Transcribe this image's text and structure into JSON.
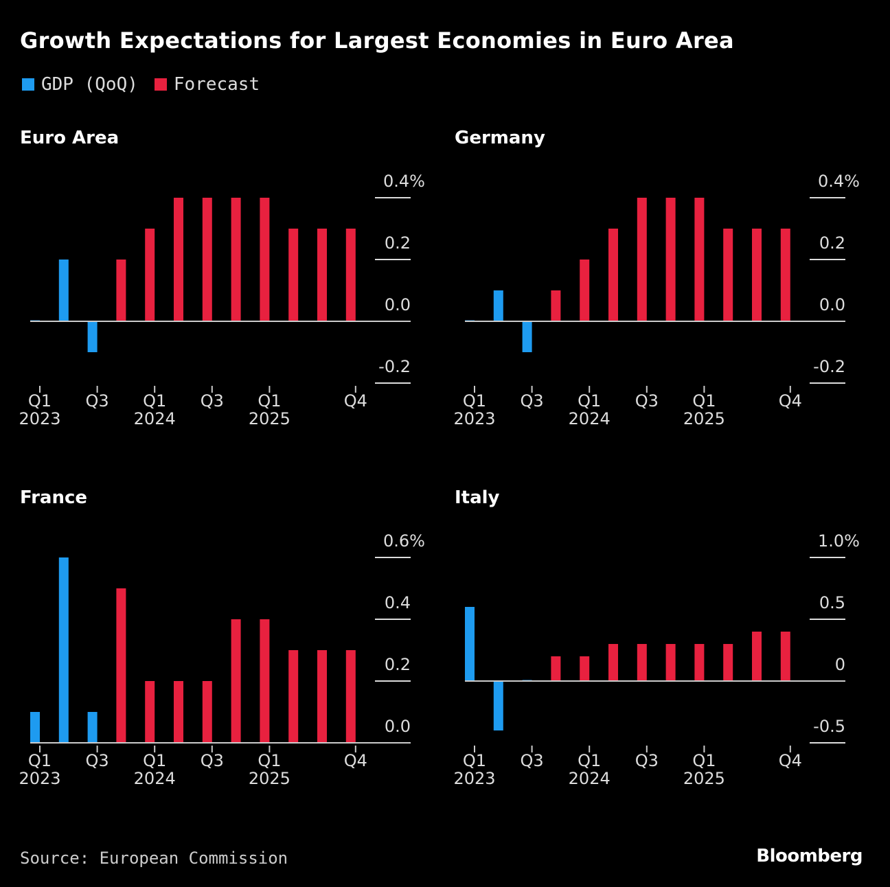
{
  "title": "Growth Expectations for Largest Economies in Euro Area",
  "legend": [
    {
      "label": "GDP (QoQ)",
      "color": "#1e9bf0"
    },
    {
      "label": "Forecast",
      "color": "#e8213f"
    }
  ],
  "source": "Source: European Commission",
  "logo": "Bloomberg",
  "chart_data": [
    {
      "type": "bar",
      "title": "Euro Area",
      "categories": [
        "Q1 2023",
        "Q2 2023",
        "Q3 2023",
        "Q4 2023",
        "Q1 2024",
        "Q2 2024",
        "Q3 2024",
        "Q4 2024",
        "Q1 2025",
        "Q2 2025",
        "Q3 2025",
        "Q4 2025"
      ],
      "series": [
        {
          "name": "GDP (QoQ)",
          "values": [
            0.0,
            0.2,
            -0.1,
            null,
            null,
            null,
            null,
            null,
            null,
            null,
            null,
            null
          ]
        },
        {
          "name": "Forecast",
          "values": [
            null,
            null,
            null,
            0.2,
            0.3,
            0.4,
            0.4,
            0.4,
            0.4,
            0.3,
            0.3,
            0.3
          ]
        }
      ],
      "ylim": [
        -0.2,
        0.4
      ],
      "yticks": [
        "0.4%",
        "0.2",
        "0.0",
        "-0.2"
      ],
      "ytick_values": [
        0.4,
        0.2,
        0.0,
        -0.2
      ],
      "xticks": [
        {
          "index": 0,
          "q": "Q1",
          "year": "2023"
        },
        {
          "index": 2,
          "q": "Q3",
          "year": ""
        },
        {
          "index": 4,
          "q": "Q1",
          "year": "2024"
        },
        {
          "index": 6,
          "q": "Q3",
          "year": ""
        },
        {
          "index": 8,
          "q": "Q1",
          "year": "2025"
        },
        {
          "index": 11,
          "q": "Q4",
          "year": ""
        }
      ]
    },
    {
      "type": "bar",
      "title": "Germany",
      "categories": [
        "Q1 2023",
        "Q2 2023",
        "Q3 2023",
        "Q4 2023",
        "Q1 2024",
        "Q2 2024",
        "Q3 2024",
        "Q4 2024",
        "Q1 2025",
        "Q2 2025",
        "Q3 2025",
        "Q4 2025"
      ],
      "series": [
        {
          "name": "GDP (QoQ)",
          "values": [
            0.0,
            0.1,
            -0.1,
            null,
            null,
            null,
            null,
            null,
            null,
            null,
            null,
            null
          ]
        },
        {
          "name": "Forecast",
          "values": [
            null,
            null,
            null,
            0.1,
            0.2,
            0.3,
            0.4,
            0.4,
            0.4,
            0.3,
            0.3,
            0.3
          ]
        }
      ],
      "ylim": [
        -0.2,
        0.4
      ],
      "yticks": [
        "0.4%",
        "0.2",
        "0.0",
        "-0.2"
      ],
      "ytick_values": [
        0.4,
        0.2,
        0.0,
        -0.2
      ],
      "xticks": [
        {
          "index": 0,
          "q": "Q1",
          "year": "2023"
        },
        {
          "index": 2,
          "q": "Q3",
          "year": ""
        },
        {
          "index": 4,
          "q": "Q1",
          "year": "2024"
        },
        {
          "index": 6,
          "q": "Q3",
          "year": ""
        },
        {
          "index": 8,
          "q": "Q1",
          "year": "2025"
        },
        {
          "index": 11,
          "q": "Q4",
          "year": ""
        }
      ]
    },
    {
      "type": "bar",
      "title": "France",
      "categories": [
        "Q1 2023",
        "Q2 2023",
        "Q3 2023",
        "Q4 2023",
        "Q1 2024",
        "Q2 2024",
        "Q3 2024",
        "Q4 2024",
        "Q1 2025",
        "Q2 2025",
        "Q3 2025",
        "Q4 2025"
      ],
      "series": [
        {
          "name": "GDP (QoQ)",
          "values": [
            0.1,
            0.6,
            0.1,
            null,
            null,
            null,
            null,
            null,
            null,
            null,
            null,
            null
          ]
        },
        {
          "name": "Forecast",
          "values": [
            null,
            null,
            null,
            0.5,
            0.2,
            0.2,
            0.2,
            0.4,
            0.4,
            0.3,
            0.3,
            0.3
          ]
        }
      ],
      "ylim": [
        0.0,
        0.6
      ],
      "yticks": [
        "0.6%",
        "0.4",
        "0.2",
        "0.0"
      ],
      "ytick_values": [
        0.6,
        0.4,
        0.2,
        0.0
      ],
      "xticks": [
        {
          "index": 0,
          "q": "Q1",
          "year": "2023"
        },
        {
          "index": 2,
          "q": "Q3",
          "year": ""
        },
        {
          "index": 4,
          "q": "Q1",
          "year": "2024"
        },
        {
          "index": 6,
          "q": "Q3",
          "year": ""
        },
        {
          "index": 8,
          "q": "Q1",
          "year": "2025"
        },
        {
          "index": 11,
          "q": "Q4",
          "year": ""
        }
      ]
    },
    {
      "type": "bar",
      "title": "Italy",
      "categories": [
        "Q1 2023",
        "Q2 2023",
        "Q3 2023",
        "Q4 2023",
        "Q1 2024",
        "Q2 2024",
        "Q3 2024",
        "Q4 2024",
        "Q1 2025",
        "Q2 2025",
        "Q3 2025",
        "Q4 2025"
      ],
      "series": [
        {
          "name": "GDP (QoQ)",
          "values": [
            0.6,
            -0.4,
            0.0,
            null,
            null,
            null,
            null,
            null,
            null,
            null,
            null,
            null
          ]
        },
        {
          "name": "Forecast",
          "values": [
            null,
            null,
            null,
            0.2,
            0.2,
            0.3,
            0.3,
            0.3,
            0.3,
            0.3,
            0.4,
            0.4
          ]
        }
      ],
      "ylim": [
        -0.5,
        1.0
      ],
      "yticks": [
        "1.0%",
        "0.5",
        "0",
        "-0.5"
      ],
      "ytick_values": [
        1.0,
        0.5,
        0.0,
        -0.5
      ],
      "xticks": [
        {
          "index": 0,
          "q": "Q1",
          "year": "2023"
        },
        {
          "index": 2,
          "q": "Q3",
          "year": ""
        },
        {
          "index": 4,
          "q": "Q1",
          "year": "2024"
        },
        {
          "index": 6,
          "q": "Q3",
          "year": ""
        },
        {
          "index": 8,
          "q": "Q1",
          "year": "2025"
        },
        {
          "index": 11,
          "q": "Q4",
          "year": ""
        }
      ]
    }
  ]
}
